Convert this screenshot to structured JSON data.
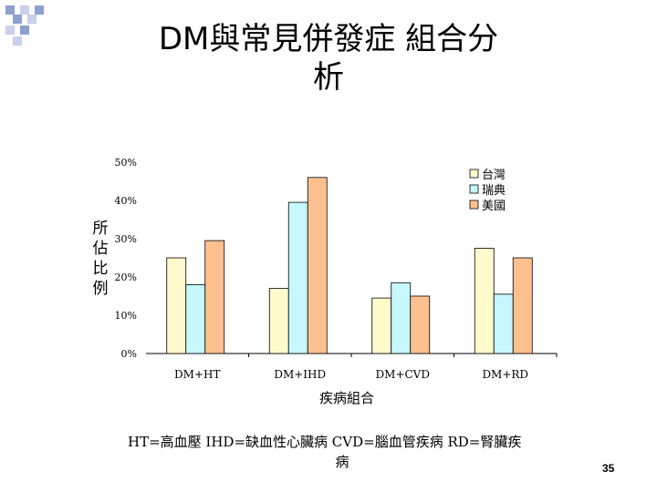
{
  "slide": {
    "title_line1": "DM與常見併發症  組合分",
    "title_line2": "析",
    "footnote_line1": "HT=高血壓  IHD=缺血性心臟病  CVD=腦血管疾病   RD=腎臟疾",
    "footnote_line2": "病",
    "page_number": "35",
    "decoration_color": "#8ca0d0"
  },
  "chart_data": {
    "type": "bar",
    "ylabel": [
      "所",
      "佔",
      "比",
      "例"
    ],
    "xlabel": "疾病組合",
    "categories": [
      "DM+HT",
      "DM+IHD",
      "DM+CVD",
      "DM+RD"
    ],
    "yticks": [
      "0%",
      "10%",
      "20%",
      "30%",
      "40%",
      "50%"
    ],
    "ylim": [
      0,
      50
    ],
    "legend_position": "top-right",
    "series": [
      {
        "name": "台灣",
        "color": "#fffacc",
        "values": [
          25,
          17,
          14.5,
          27.5
        ]
      },
      {
        "name": "瑞典",
        "color": "#c8f8ff",
        "values": [
          18,
          39.5,
          18.5,
          15.5
        ]
      },
      {
        "name": "美國",
        "color": "#ffc090",
        "values": [
          29.5,
          46,
          15,
          25
        ]
      }
    ]
  }
}
